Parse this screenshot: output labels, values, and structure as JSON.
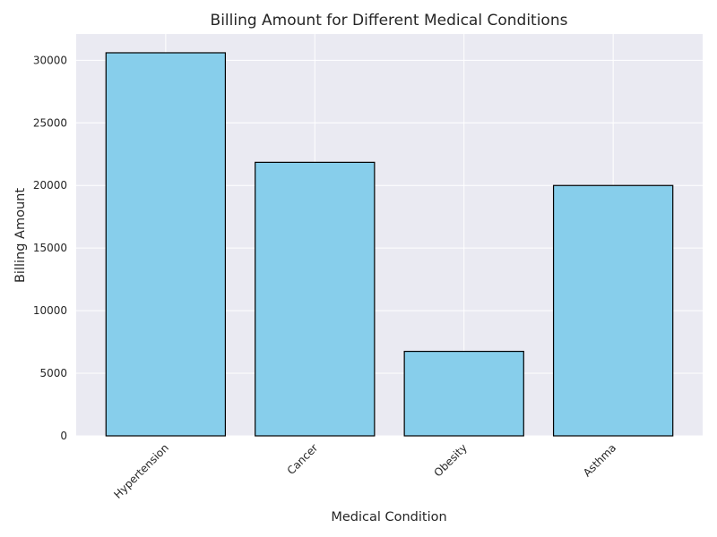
{
  "chart_data": {
    "type": "bar",
    "title": "Billing Amount for Different Medical Conditions",
    "xlabel": "Medical Condition",
    "ylabel": "Billing Amount",
    "categories": [
      "Hypertension",
      "Cancer",
      "Obesity",
      "Asthma"
    ],
    "values": [
      30600,
      21850,
      6750,
      20000
    ],
    "ylim": [
      0,
      32100
    ],
    "yticks": [
      "0",
      "5000",
      "10000",
      "15000",
      "20000",
      "25000",
      "30000"
    ],
    "grid": true,
    "legend": "none",
    "colors": {
      "bar_fill": "#87ceeb",
      "bar_edge": "#000000",
      "plot_background": "#eaeaf2",
      "grid": "#ffffff"
    }
  }
}
